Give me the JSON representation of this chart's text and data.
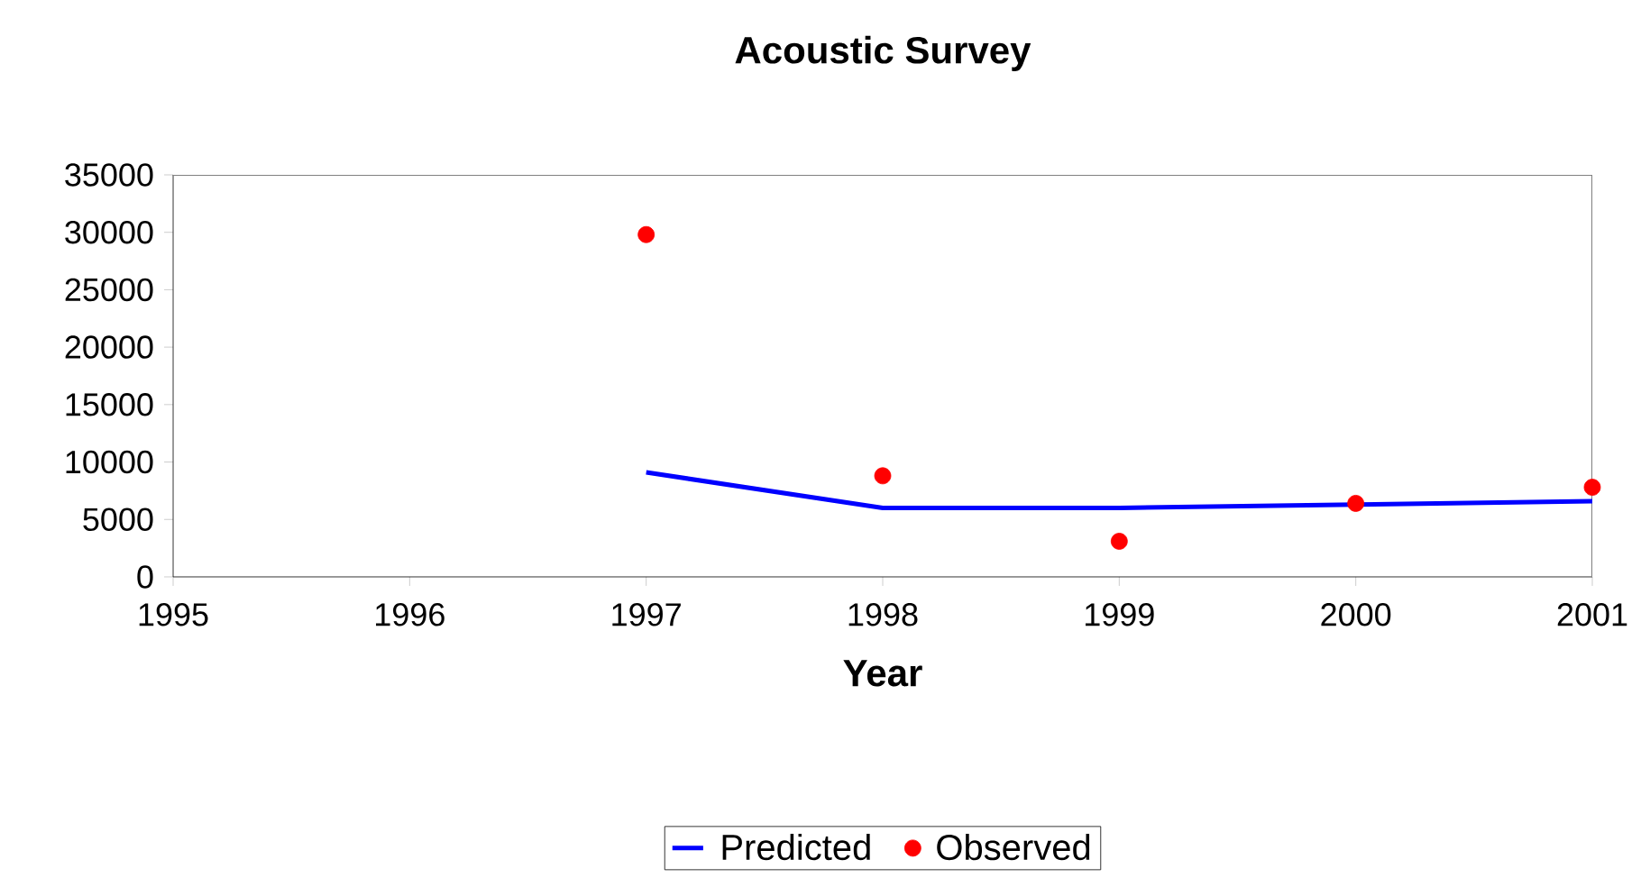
{
  "chart_data": {
    "type": "line",
    "title": "Acoustic Survey",
    "xlabel": "Year",
    "x": [
      1997,
      1998,
      1999,
      2000,
      2001
    ],
    "series": [
      {
        "name": "Predicted",
        "type": "line",
        "color": "#0000ff",
        "marker": "none",
        "line_style": "solid",
        "values": [
          9100,
          6000,
          6000,
          6300,
          6600
        ]
      },
      {
        "name": "Observed",
        "type": "scatter",
        "color": "#ff0000",
        "marker": "circle",
        "values": [
          29800,
          8800,
          3100,
          6400,
          7800
        ]
      }
    ],
    "xlim": [
      1995,
      2001
    ],
    "xticks": [
      1995,
      1996,
      1997,
      1998,
      1999,
      2000,
      2001
    ],
    "ylim": [
      0,
      35000
    ],
    "yticks": [
      0,
      5000,
      10000,
      15000,
      20000,
      25000,
      30000,
      35000
    ],
    "grid": false,
    "legend": "bottom"
  }
}
